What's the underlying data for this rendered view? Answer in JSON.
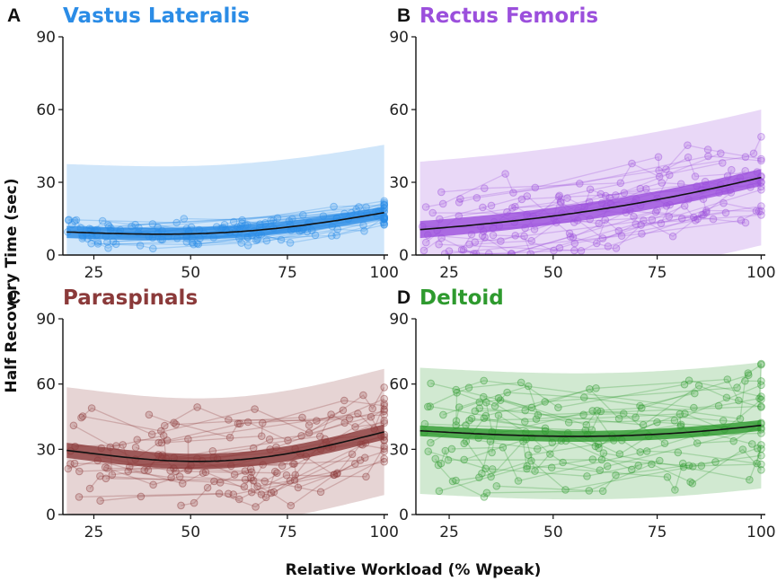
{
  "chart_data": {
    "type": "line",
    "ylabel": "Half Recovery Time (sec)",
    "xlabel": "Relative Workload (% Wpeak)",
    "xlim": [
      17,
      101
    ],
    "ylim": [
      0,
      90
    ],
    "xticks": [
      "25",
      "50",
      "75",
      "100"
    ],
    "yticks": [
      "0",
      "30",
      "60",
      "90"
    ],
    "panels": [
      {
        "letter": "A",
        "title": "Vastus Lateralis",
        "color": "#2b8ce6",
        "fit": {
          "x": [
            18,
            35,
            55,
            75,
            100
          ],
          "y": [
            9.5,
            8.7,
            9.0,
            11.5,
            17.5
          ]
        },
        "ci_half_width": 2.5,
        "pi_half_width": 28,
        "points_spread": 5,
        "n_subjects": 28,
        "seed": 11
      },
      {
        "letter": "B",
        "title": "Rectus Femoris",
        "color": "#9b4fdc",
        "fit": {
          "x": [
            18,
            40,
            60,
            80,
            100
          ],
          "y": [
            10.5,
            14.0,
            18.5,
            24.5,
            32.0
          ]
        },
        "ci_half_width": 3.5,
        "pi_half_width": 28,
        "points_spread": 14,
        "n_subjects": 30,
        "seed": 23
      },
      {
        "letter": "C",
        "title": "Paraspinals",
        "color": "#8b3a3a",
        "fit": {
          "x": [
            18,
            35,
            55,
            75,
            100
          ],
          "y": [
            29.5,
            26.0,
            24.5,
            28.0,
            38.0
          ]
        },
        "ci_half_width": 3.5,
        "pi_half_width": 29,
        "points_spread": 17,
        "n_subjects": 28,
        "seed": 37
      },
      {
        "letter": "D",
        "title": "Deltoid",
        "color": "#2e9a2e",
        "fit": {
          "x": [
            18,
            40,
            60,
            80,
            100
          ],
          "y": [
            38.5,
            36.5,
            36.0,
            37.5,
            41.0
          ]
        },
        "ci_half_width": 2.5,
        "pi_half_width": 29,
        "points_spread": 20,
        "n_subjects": 30,
        "seed": 53
      }
    ]
  }
}
